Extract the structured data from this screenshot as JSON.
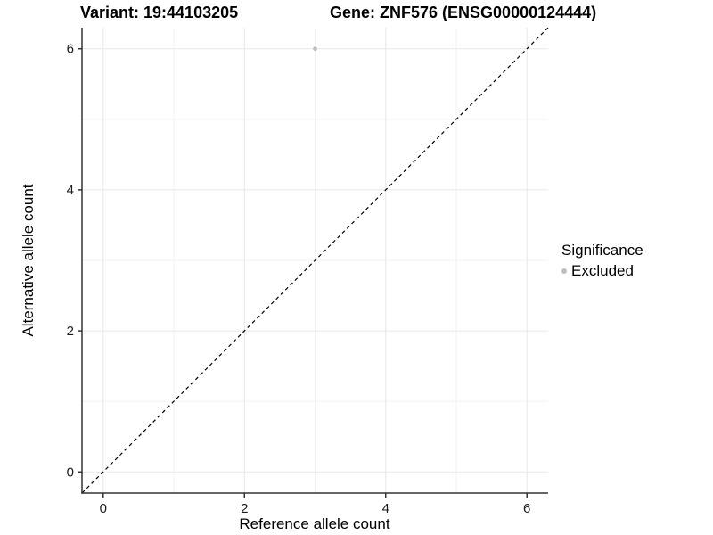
{
  "titles": {
    "variant": "Variant: 19:44103205",
    "gene": "Gene: ZNF576 (ENSG00000124444)"
  },
  "chart_data": {
    "type": "scatter",
    "xlabel": "Reference allele count",
    "ylabel": "Alternative allele count",
    "xlim": [
      -0.3,
      6.3
    ],
    "ylim": [
      -0.3,
      6.3
    ],
    "xticks": [
      0,
      2,
      4,
      6
    ],
    "yticks": [
      0,
      2,
      4,
      6
    ],
    "minor_gridlines_x": [
      1,
      3,
      5
    ],
    "minor_gridlines_y": [
      1,
      3,
      5
    ],
    "grid": "on",
    "points": [
      {
        "x": 3,
        "y": 6,
        "series": "Excluded"
      }
    ],
    "reference_line": {
      "slope": 1,
      "intercept": 0,
      "style": "dashed"
    },
    "legend": {
      "title": "Significance",
      "position": "right",
      "entries": [
        {
          "label": "Excluded",
          "color": "#bebebe"
        }
      ]
    }
  },
  "colors": {
    "background": "#ffffff",
    "point": "#bebebe",
    "grid_major": "#e7e7e7",
    "grid_minor": "#f2f2f2",
    "axis": "#333333",
    "tick_text": "#1a1a1a",
    "reference_line": "#000000",
    "title_text": "#000000"
  }
}
